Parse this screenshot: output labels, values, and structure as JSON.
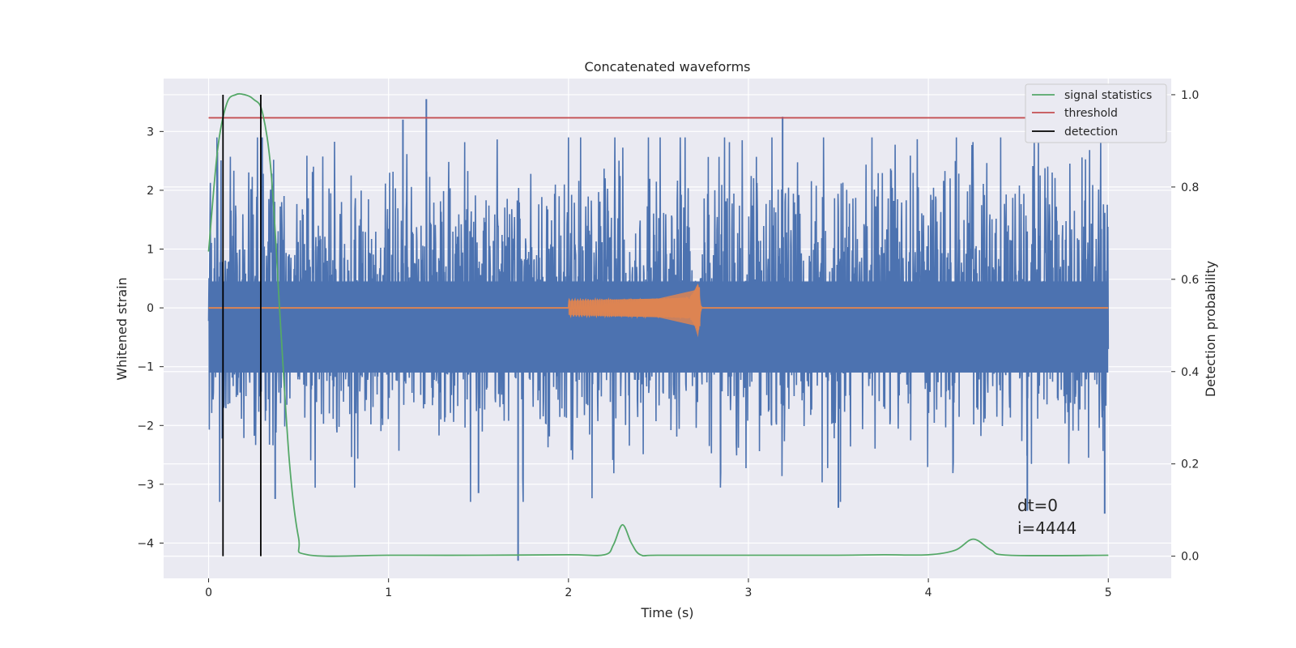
{
  "chart_data": {
    "type": "line",
    "title": "Concatenated waveforms",
    "xlabel": "Time (s)",
    "ylabel": "Whitened strain",
    "y2label": "Detection probability",
    "xlim": [
      -0.25,
      5.35
    ],
    "ylim": [
      -4.6,
      3.9
    ],
    "y2lim": [
      -0.048,
      1.035
    ],
    "x_ticks": [
      0,
      1,
      2,
      3,
      4,
      5
    ],
    "y_ticks": [
      -4,
      -3,
      -2,
      -1,
      0,
      1,
      2,
      3
    ],
    "y2_ticks": [
      0.0,
      0.2,
      0.4,
      0.6,
      0.8,
      1.0
    ],
    "y2_tick_labels": [
      "0.0",
      "0.2",
      "0.4",
      "0.6",
      "0.8",
      "1.0"
    ],
    "grid": true,
    "legend_position": "top-right",
    "legend": [
      {
        "label": "signal statistics",
        "color": "#55a868"
      },
      {
        "label": "threshold",
        "color": "#c44e52"
      },
      {
        "label": "detection",
        "color": "#000000"
      }
    ],
    "strain_noise": {
      "color": "#4c72b0",
      "x_range": [
        0,
        5
      ],
      "typical_amplitude": 1.2,
      "spike_extremes": [
        3.55,
        -4.3
      ]
    },
    "injected_signal": {
      "color": "#dd8452",
      "x_start": 2.0,
      "x_merger": 2.72,
      "peak_amplitude": 0.4
    },
    "signal_statistics": {
      "color": "#55a868",
      "x": [
        0,
        0.05,
        0.1,
        0.15,
        0.2,
        0.25,
        0.3,
        0.35,
        0.4,
        0.45,
        0.5,
        0.55,
        1.0,
        1.5,
        2.0,
        2.2,
        2.25,
        2.3,
        2.35,
        2.4,
        2.5,
        3.0,
        3.5,
        3.75,
        4.0,
        4.15,
        4.25,
        4.35,
        4.45,
        5.0
      ],
      "y": [
        0.66,
        0.88,
        0.98,
        1.0,
        1.0,
        0.99,
        0.96,
        0.82,
        0.5,
        0.2,
        0.04,
        0.003,
        0.002,
        0.002,
        0.003,
        0.003,
        0.025,
        0.068,
        0.028,
        0.003,
        0.002,
        0.002,
        0.002,
        0.003,
        0.003,
        0.013,
        0.037,
        0.013,
        0.002,
        0.002
      ]
    },
    "threshold": {
      "color": "#c44e52",
      "value": 0.95,
      "x_range": [
        0,
        5.1
      ]
    },
    "detections": {
      "color": "#000000",
      "x": [
        0.08,
        0.29
      ]
    },
    "annotations": [
      "dt=0",
      "i=4444"
    ]
  }
}
